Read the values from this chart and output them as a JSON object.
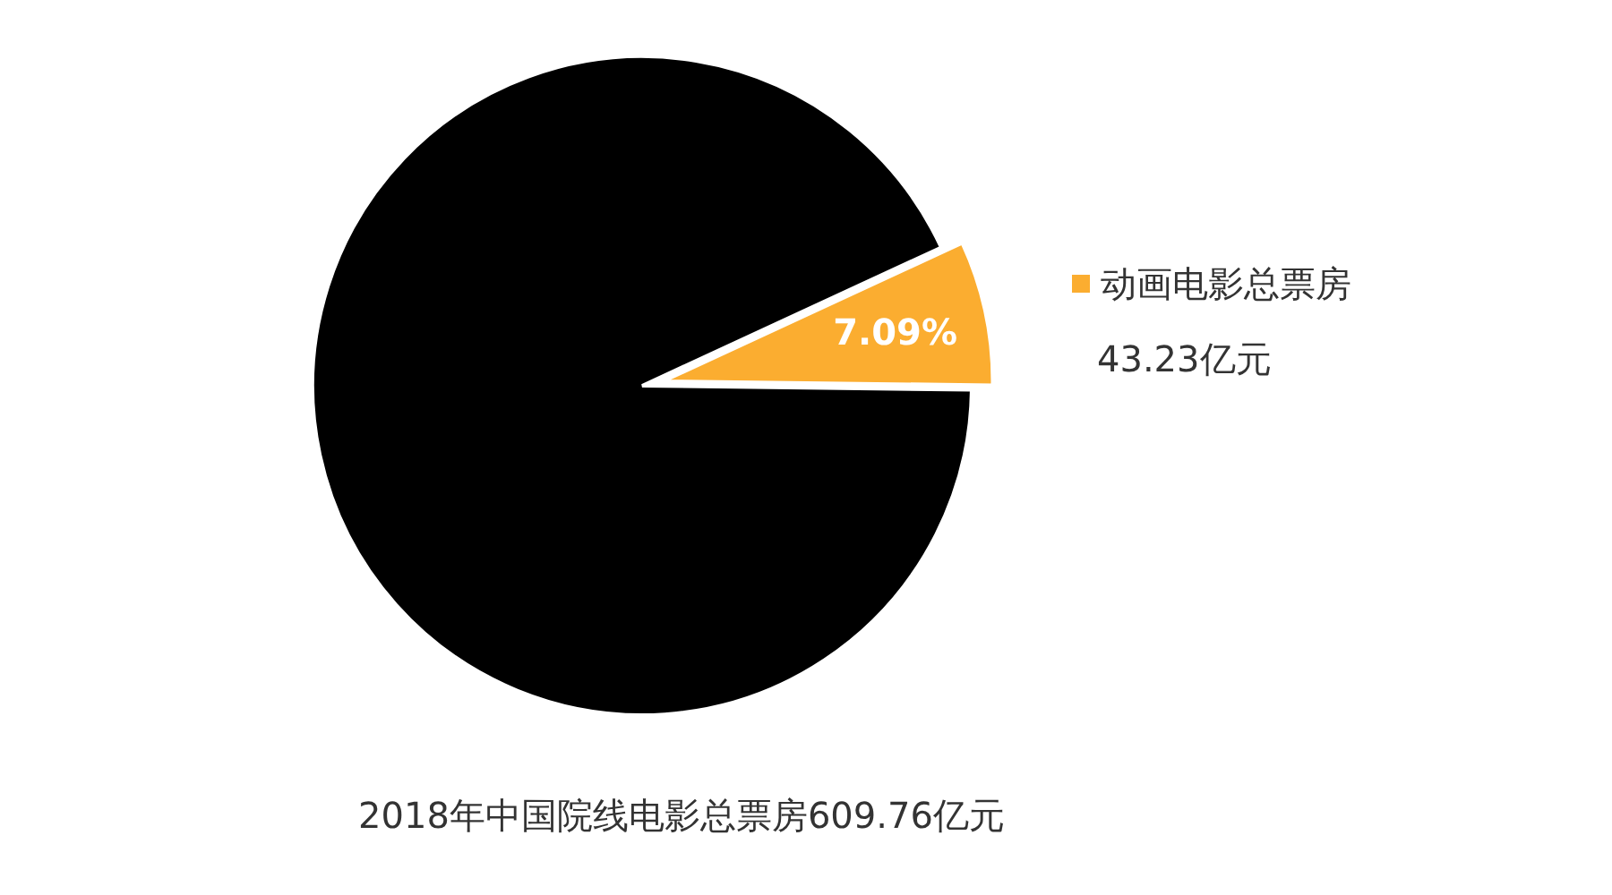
{
  "chart_data": {
    "type": "pie",
    "categories": [
      "动画电影总票房",
      null
    ],
    "values": [
      7.09,
      92.91
    ],
    "colors": [
      "#fbad30",
      "#000000"
    ],
    "value_labels": [
      "7.09%",
      null
    ],
    "legend": "right",
    "annotations": [
      "43.23亿元",
      "2018年中国院线电影总票房609.76亿元"
    ]
  }
}
